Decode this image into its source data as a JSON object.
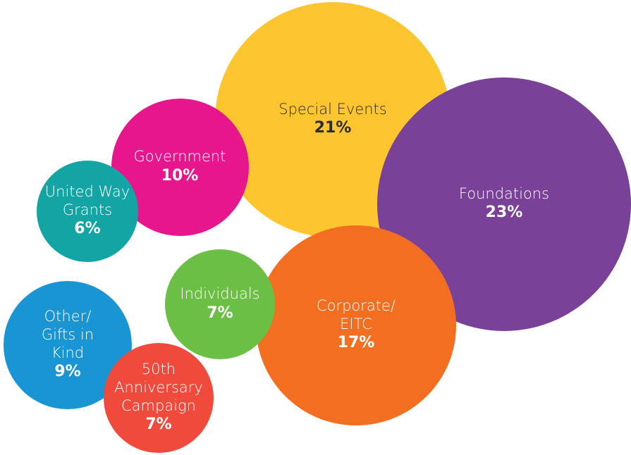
{
  "chart_data": {
    "type": "bubble",
    "categories": [
      "Special Events",
      "Foundations",
      "Government",
      "United Way Grants",
      "Individuals",
      "Corporate/ EITC",
      "Other/ Gifts in Kind",
      "50th Anniversary Campaign"
    ],
    "values": [
      21,
      23,
      10,
      6,
      7,
      17,
      9,
      7
    ],
    "value_labels": [
      "21%",
      "23%",
      "10%",
      "6%",
      "7%",
      "17%",
      "9%",
      "7%"
    ],
    "colors": [
      "#fdc530",
      "#7a4199",
      "#e8168c",
      "#12a5a3",
      "#6cbf45",
      "#f26f22",
      "#1a95d4",
      "#ef4a3b"
    ]
  }
}
